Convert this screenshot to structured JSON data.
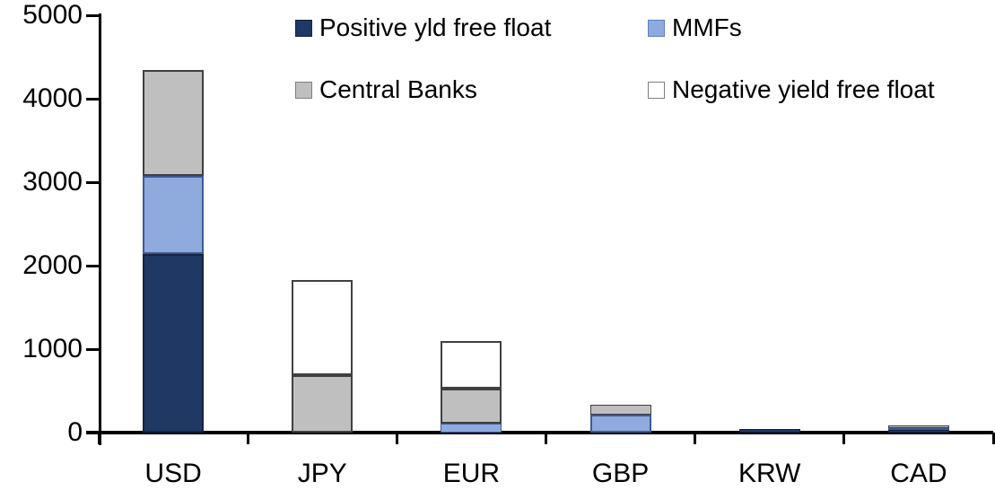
{
  "chart_data": {
    "type": "bar",
    "stacked": true,
    "title": "",
    "xlabel": "",
    "ylabel": "",
    "categories": [
      "USD",
      "JPY",
      "EUR",
      "GBP",
      "KRW",
      "CAD"
    ],
    "series": [
      {
        "name": "Positive yld free float",
        "color": "#1f3864",
        "border": "#17233f",
        "values": [
          2140,
          0,
          0,
          0,
          45,
          30
        ]
      },
      {
        "name": "MMFs",
        "color": "#8faadc",
        "border": "#3d5a96",
        "values": [
          930,
          0,
          105,
          215,
          0,
          20
        ]
      },
      {
        "name": "Central Banks",
        "color": "#bfbfbf",
        "border": "#404040",
        "values": [
          1270,
          690,
          425,
          120,
          0,
          35
        ]
      },
      {
        "name": "Negative yield free float",
        "color": "#ffffff",
        "border": "#404040",
        "values": [
          0,
          1140,
          570,
          0,
          0,
          0
        ]
      }
    ],
    "totals": [
      4340,
      1830,
      1100,
      335,
      45,
      85
    ],
    "ylim": [
      0,
      5000
    ],
    "yticks": [
      0,
      1000,
      2000,
      3000,
      4000,
      5000
    ],
    "grid": false,
    "legend_position": "top",
    "legend_columns": 2
  },
  "legend": {
    "item0": "Positive yld free float",
    "item1": "MMFs",
    "item2": "Central Banks",
    "item3": "Negative yield free float"
  }
}
